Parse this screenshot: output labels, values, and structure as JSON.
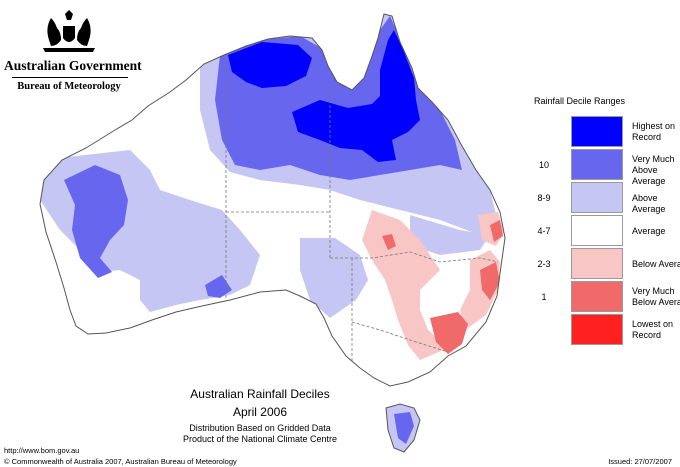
{
  "header": {
    "government": "Australian Government",
    "bureau": "Bureau of Meteorology"
  },
  "legend": {
    "title": "Rainfall Decile Ranges",
    "items": [
      {
        "range": "",
        "label": "Highest on Record",
        "color": "#0000ff"
      },
      {
        "range": "10",
        "label": "Very Much Above Average",
        "color": "#6666ee"
      },
      {
        "range": "8-9",
        "label": "Above Average",
        "color": "#c6c6f5"
      },
      {
        "range": "4-7",
        "label": "Average",
        "color": "#ffffff"
      },
      {
        "range": "2-3",
        "label": "Below Average",
        "color": "#f9c6c6"
      },
      {
        "range": "1",
        "label": "Very Much Below Average",
        "color": "#f06a6a"
      },
      {
        "range": "",
        "label": "Lowest on Record",
        "color": "#ff2020"
      }
    ]
  },
  "caption": {
    "title": "Australian Rainfall Deciles",
    "period": "April 2006",
    "line1": "Distribution Based on Gridded Data",
    "line2": "Product of the National Climate Centre"
  },
  "footer": {
    "url": "http://www.bom.gov.au",
    "copyright": "© Commonwealth of Australia 2007, Australian Bureau of Meteorology",
    "issued": "Issued: 27/07/2007"
  },
  "map_colors": {
    "land": "#ffffff",
    "outline": "#555555",
    "state_border": "#777777"
  }
}
